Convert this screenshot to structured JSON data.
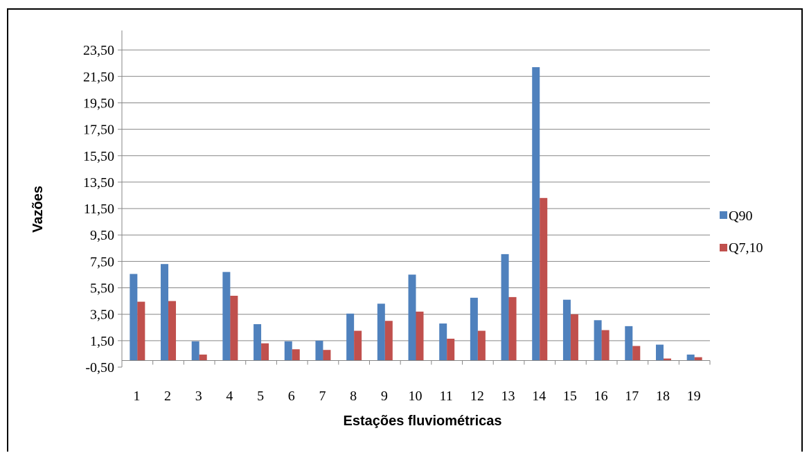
{
  "chart_data": {
    "type": "bar",
    "title": "",
    "xlabel": "Estações fluviométricas",
    "ylabel": "Vazões",
    "ylim": [
      -0.5,
      25.5
    ],
    "yticks": [
      "-0,50",
      "1,50",
      "3,50",
      "5,50",
      "7,50",
      "9,50",
      "11,50",
      "13,50",
      "15,50",
      "17,50",
      "19,50",
      "21,50",
      "23,50"
    ],
    "ytick_values": [
      -0.5,
      1.5,
      3.5,
      5.5,
      7.5,
      9.5,
      11.5,
      13.5,
      15.5,
      17.5,
      19.5,
      21.5,
      23.5
    ],
    "categories": [
      "1",
      "2",
      "3",
      "4",
      "5",
      "6",
      "7",
      "8",
      "9",
      "10",
      "11",
      "12",
      "13",
      "14",
      "15",
      "16",
      "17",
      "18",
      "19"
    ],
    "series": [
      {
        "name": "Q90",
        "color": "#4F81BD",
        "values": [
          6.55,
          7.3,
          1.45,
          6.7,
          2.75,
          1.45,
          1.5,
          3.55,
          4.3,
          6.5,
          2.8,
          4.75,
          8.05,
          22.2,
          4.6,
          3.05,
          2.6,
          1.2,
          0.45
        ]
      },
      {
        "name": "Q7,10",
        "color": "#C0504D",
        "values": [
          4.45,
          4.5,
          0.45,
          4.9,
          1.3,
          0.85,
          0.8,
          2.25,
          3.0,
          3.7,
          1.65,
          2.25,
          4.8,
          12.3,
          3.5,
          2.3,
          1.1,
          0.15,
          0.25
        ]
      }
    ],
    "grid": true,
    "legend_position": "right"
  }
}
